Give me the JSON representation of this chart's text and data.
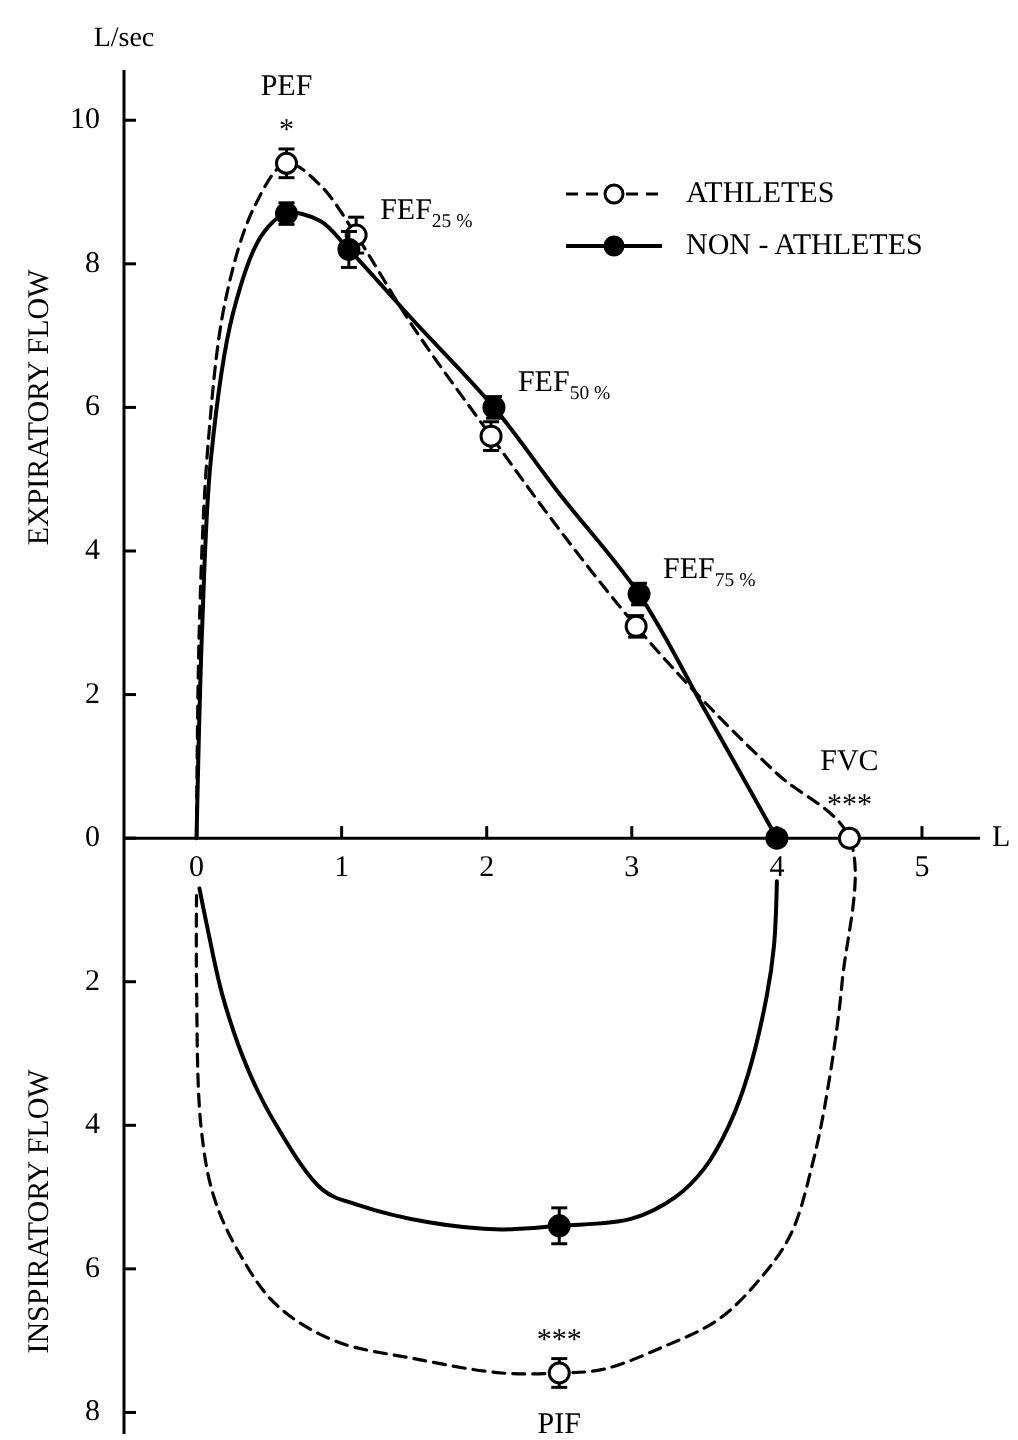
{
  "chart_data": {
    "type": "line",
    "xlabel": "L",
    "ylabel": "EXPIRATORY FLOW",
    "xlim": [
      -0.5,
      5.4
    ],
    "ylim": [
      -8.3,
      10.7
    ],
    "xticks": [
      0,
      1,
      2,
      3,
      4,
      5
    ],
    "yticks": [
      10,
      8,
      6,
      4,
      2,
      0,
      {
        "value": -2,
        "label": "2"
      },
      {
        "value": -4,
        "label": "4"
      },
      {
        "value": -6,
        "label": "6"
      },
      {
        "value": -8,
        "label": "8"
      }
    ],
    "grid": false,
    "legend": "top right",
    "series": [
      {
        "name": "ATHLETES",
        "type": "line",
        "color": "#000000",
        "line_style": "dashed",
        "marker": "none",
        "x": [
          0,
          0.02,
          0.08,
          0.2,
          0.4,
          0.62,
          0.85,
          1.1,
          1.5,
          2.03,
          2.5,
          3.03,
          3.5,
          4.0,
          4.5,
          4.45,
          4.35,
          4.25,
          4.1,
          3.9,
          3.6,
          3.2,
          2.8,
          2.5,
          2.1,
          1.5,
          0.95,
          0.55,
          0.3,
          0.12,
          0.03,
          0,
          0
        ],
        "values": [
          0,
          3,
          5.5,
          7.5,
          8.8,
          9.4,
          9.1,
          8.4,
          7.1,
          5.6,
          4.3,
          2.95,
          1.9,
          0.9,
          0,
          -2,
          -3.5,
          -4.5,
          -5.5,
          -6.1,
          -6.7,
          -7.1,
          -7.4,
          -7.45,
          -7.45,
          -7.25,
          -7,
          -6.5,
          -5.8,
          -5,
          -4,
          -2,
          -0.8
        ]
      },
      {
        "type": "scatter",
        "color": "#ffffff",
        "marker": "circle",
        "x": [
          0.62,
          1.1,
          2.03,
          3.03,
          4.5,
          2.5
        ],
        "values": [
          9.4,
          8.4,
          5.6,
          2.95,
          0,
          -7.45
        ],
        "errors": [
          0.2,
          0.25,
          0.2,
          0.15,
          0.1,
          0.2
        ]
      },
      {
        "name": "NON - ATHLETES",
        "type": "line",
        "color": "#000000",
        "line_style": "solid",
        "marker": "none",
        "x": [
          0,
          0.04,
          0.1,
          0.25,
          0.45,
          0.62,
          0.85,
          1.05,
          1.5,
          2.05,
          2.5,
          3.05,
          3.5,
          4,
          null,
          4,
          3.98,
          3.93,
          3.8,
          3.67,
          3.5,
          3.3,
          3,
          2.5,
          2.1,
          1.6,
          1.1,
          0.87,
          0.55,
          0.35,
          0.18,
          0.07,
          0.02
        ],
        "values": [
          0,
          3,
          5.3,
          7.3,
          8.4,
          8.7,
          8.6,
          8.2,
          7.2,
          6.0,
          4.8,
          3.4,
          1.8,
          0,
          null,
          -0.6,
          -1.5,
          -2.2,
          -3.3,
          -4,
          -4.6,
          -5,
          -5.3,
          -5.4,
          -5.45,
          -5.35,
          -5.1,
          -4.9,
          -4,
          -3.2,
          -2.2,
          -1.2,
          -0.7
        ]
      },
      {
        "type": "scatter",
        "color": "#000000",
        "marker": "circle",
        "x": [
          0.62,
          1.05,
          2.05,
          3.05,
          4.0,
          2.5
        ],
        "values": [
          8.7,
          8.2,
          6.0,
          3.4,
          0,
          -5.4
        ],
        "errors": [
          0.15,
          0.25,
          0.15,
          0.15,
          0.1,
          0.25
        ]
      }
    ],
    "annotations": [
      "L/sec",
      "INSPIRATORY FLOW",
      {
        "text": "*",
        "x": 0.62,
        "y": 9.4
      },
      {
        "text": "PEF",
        "x": 0.62,
        "y": 9.4
      },
      {
        "text": "FEF$_{25 %}$",
        "x": 1.1,
        "y": 8.4
      },
      {
        "text": "FEF$_{50 %}$",
        "x": 2.05,
        "y": 6.0
      },
      {
        "text": "FEF$_{75 %}$",
        "x": 3.05,
        "y": 3.4
      },
      {
        "text": "***",
        "x": 4.5,
        "y": 0
      },
      {
        "text": "FVC",
        "x": 4.5,
        "y": 0
      },
      {
        "text": "***",
        "x": 2.5,
        "y": -7.45
      },
      {
        "text": "PIF",
        "x": 2.5,
        "y": -7.45
      }
    ]
  }
}
